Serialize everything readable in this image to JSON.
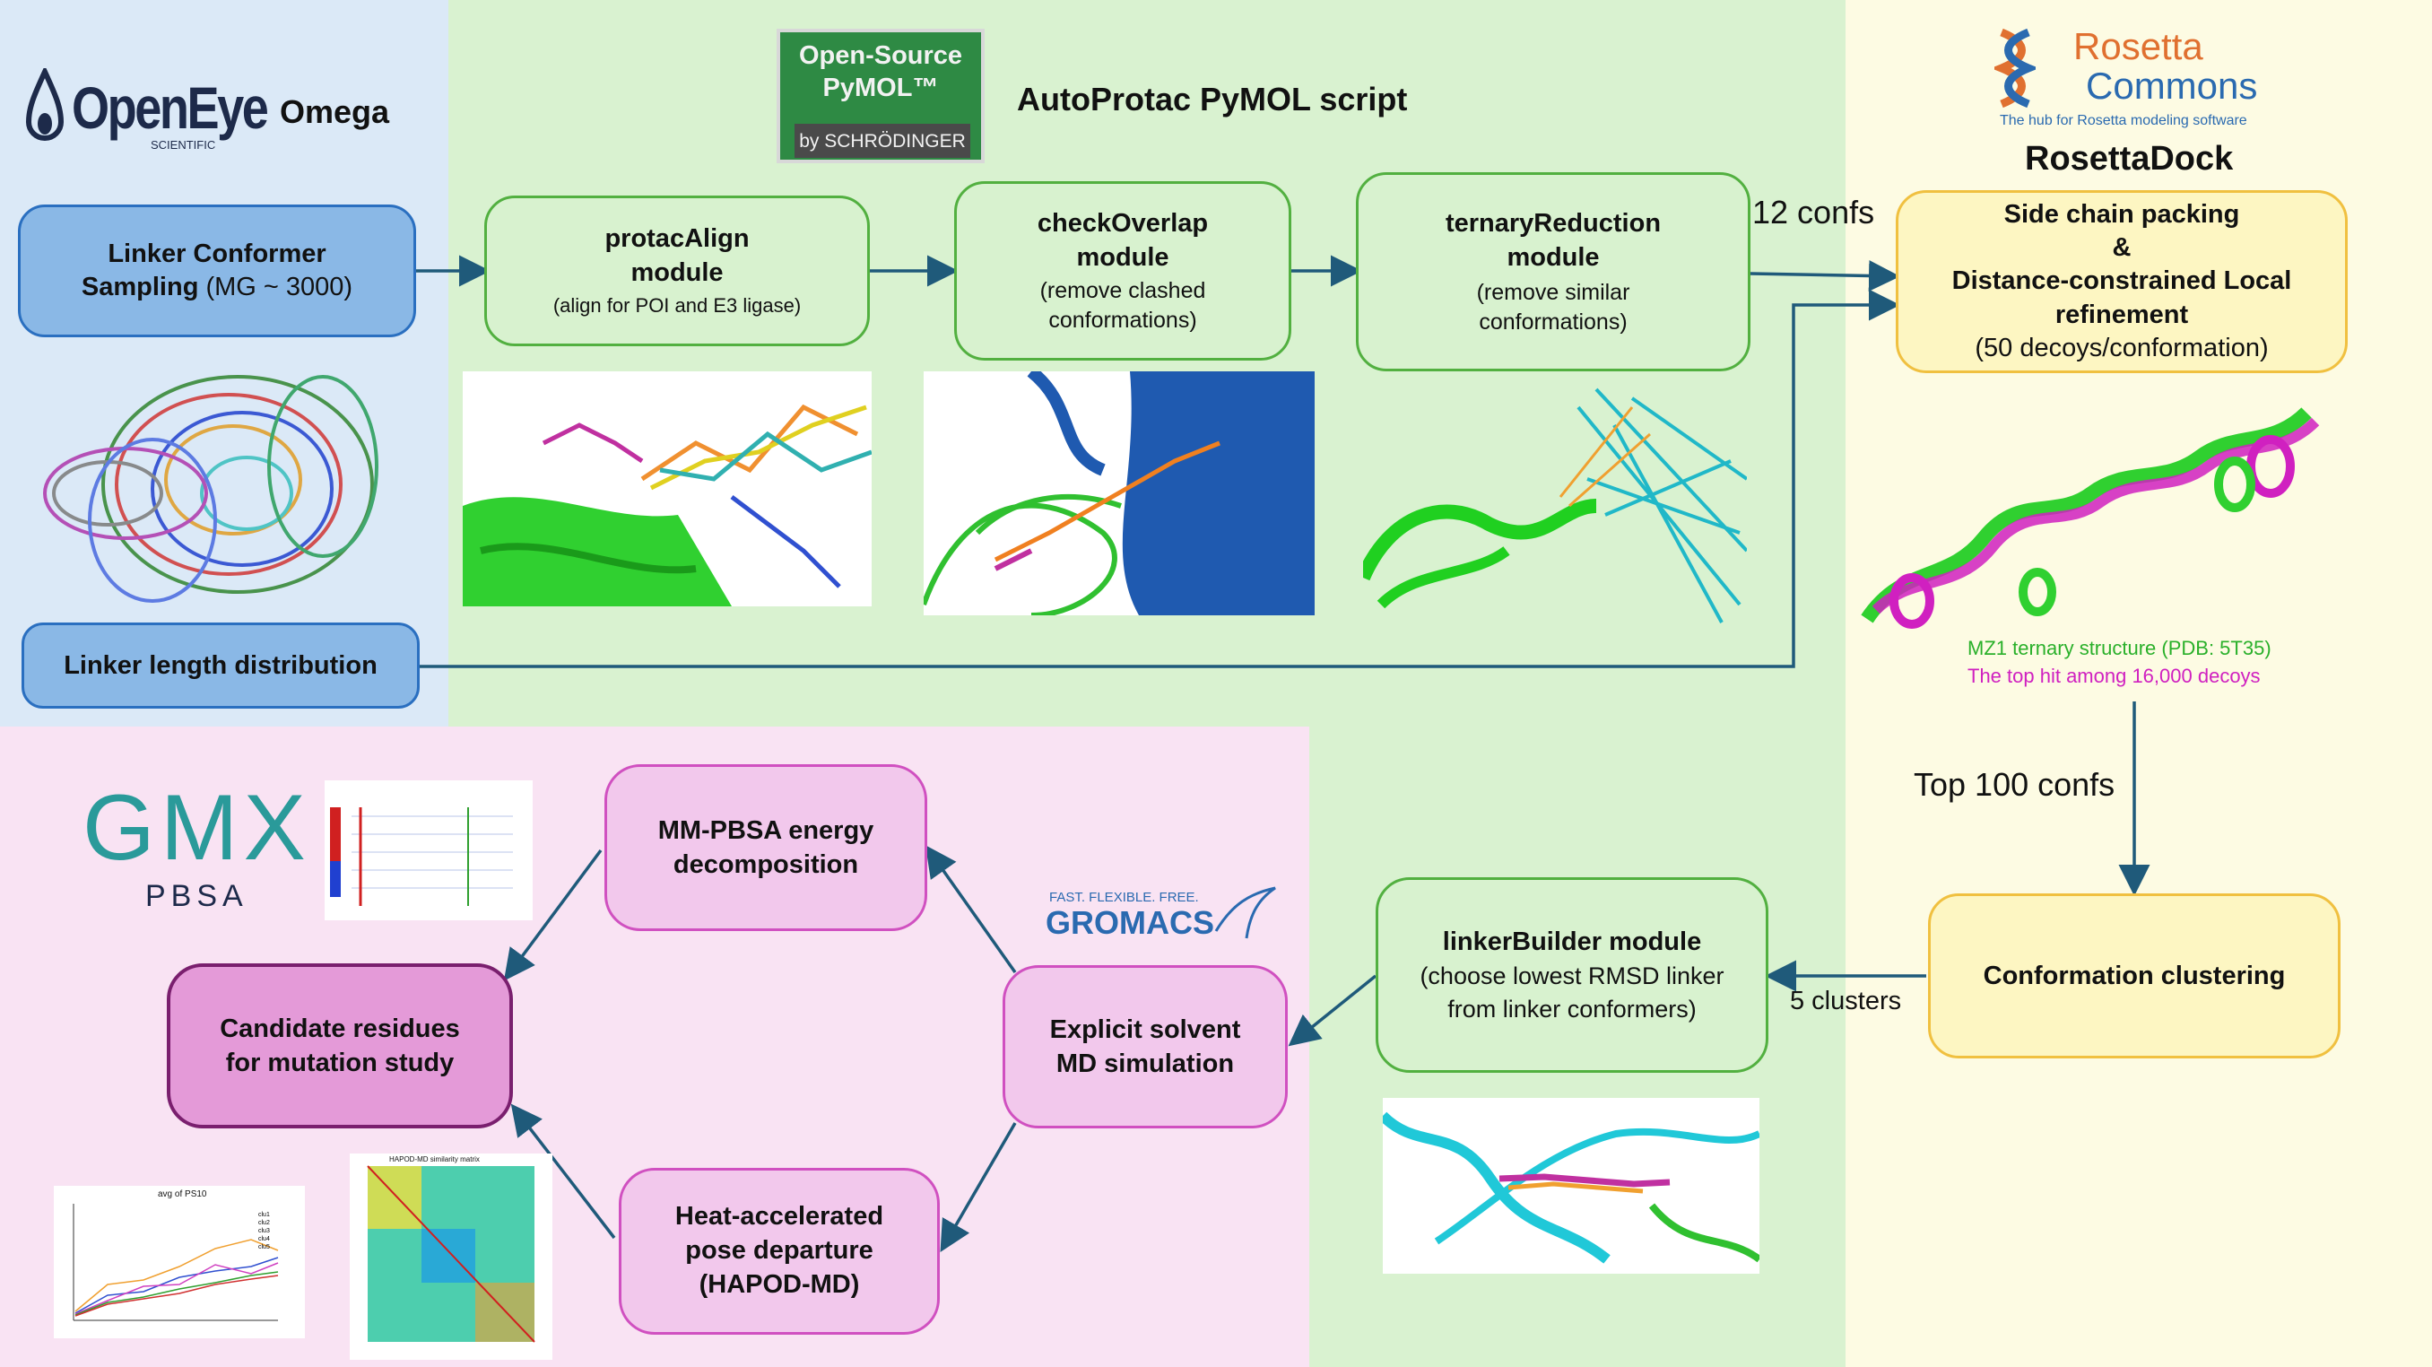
{
  "left_panel": {
    "logo": {
      "brand": "OpenEye",
      "sub": "SCIENTIFIC"
    },
    "title": "Omega",
    "sampling_box": {
      "line1": "Linker Conformer",
      "line2_bold": "Sampling",
      "line2_rest": " (MG ~ 3000)"
    },
    "length_box": "Linker length distribution"
  },
  "pymol_panel": {
    "logo": {
      "line1": "Open-Source",
      "line2": "PyMOL™",
      "by": "by SCHRÖDINGER"
    },
    "title": "AutoProtac PyMOL script",
    "modules": [
      {
        "title1": "protacAlign",
        "title2": "module",
        "desc1": "(align for POI and E3 ligase)",
        "desc2": ""
      },
      {
        "title1": "checkOverlap",
        "title2": "module",
        "desc1": "(remove clashed",
        "desc2": "conformations)"
      },
      {
        "title1": "ternaryReduction",
        "title2": "module",
        "desc1": "(remove similar",
        "desc2": "conformations)"
      }
    ],
    "confs_label": "12 confs"
  },
  "rosetta_panel": {
    "logo": {
      "line1": "Rosetta",
      "line2": "Commons",
      "tagline": "The hub for Rosetta modeling software"
    },
    "title": "RosettaDock",
    "refine_box": {
      "l1": "Side chain packing",
      "l2": "&",
      "l3": "Distance-constrained Local",
      "l4": "refinement",
      "l5": "(50 decoys/conformation)"
    },
    "caption_green": "MZ1 ternary structure (PDB: 5T35)",
    "caption_magenta": "The top hit among 16,000 decoys",
    "top_label": "Top 100 confs",
    "cluster_box": "Conformation clustering"
  },
  "md_panel": {
    "gromacs": {
      "tag": "FAST. FLEXIBLE. FREE.",
      "name": "GROMACS"
    },
    "linker_builder": {
      "title": "linkerBuilder module",
      "d1": "(choose lowest RMSD linker",
      "d2": "from linker conformers)"
    },
    "clusters_label": "5 clusters",
    "explicit_box": {
      "l1": "Explicit solvent",
      "l2": "MD simulation"
    },
    "mmpbsa_box": {
      "l1": "MM-PBSA energy",
      "l2": "decomposition"
    },
    "hapod_box": {
      "l1": "Heat-accelerated",
      "l2": "pose departure",
      "l3": "(HAPOD-MD)"
    },
    "candidate_box": {
      "l1": "Candidate residues",
      "l2": "for mutation study"
    },
    "gmx_logo": {
      "line1": "GMX",
      "line2": "PBSA"
    },
    "rmsd_plot_title": "avg of PS10",
    "heatmap_title": "HAPOD-MD similarity matrix",
    "legend": [
      "clu1",
      "clu2",
      "clu3",
      "clu4",
      "clu5"
    ]
  },
  "colors": {
    "left_bg": "#dbe9f7",
    "pymol_bg": "#d9f2d0",
    "rosetta_bg": "#fdfbe3",
    "md_green_bg": "#d9f2d0",
    "md_pink_bg": "#f9e3f3",
    "arrow": "#1f5a7a"
  }
}
